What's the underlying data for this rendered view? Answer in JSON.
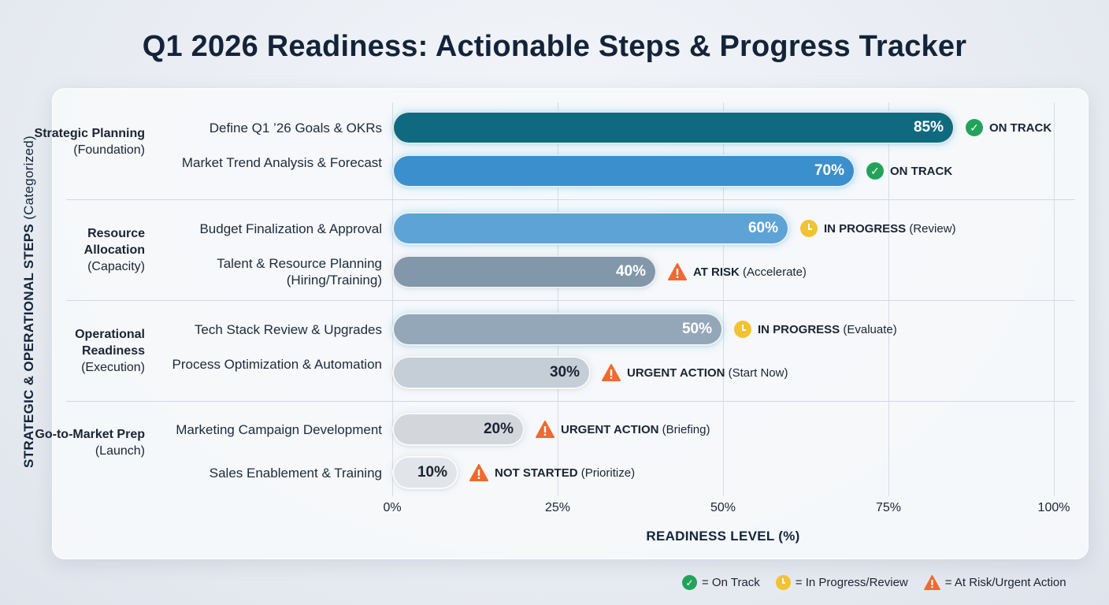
{
  "colors": {
    "on_track": "#22a35a",
    "in_progress": "#f2c233",
    "at_risk": "#ef6a2e"
  },
  "chart_data": {
    "type": "bar",
    "orientation": "horizontal",
    "title": "Q1 2026 Readiness: Actionable Steps & Progress Tracker",
    "xlabel": "READINESS LEVEL (%)",
    "ylabel": "STRATEGIC & OPERATIONAL STEPS",
    "ylabel_sub": "(Categorized)",
    "xlim": [
      0,
      100
    ],
    "xticks": [
      "0%",
      "25%",
      "50%",
      "75%",
      "100%"
    ],
    "groups": [
      {
        "name": "Strategic Planning",
        "sub": "(Foundation)"
      },
      {
        "name": "Resource Allocation",
        "sub": "(Capacity)"
      },
      {
        "name": "Operational Readiness",
        "sub": "(Execution)"
      },
      {
        "name": "Go-to-Market Prep",
        "sub": "(Launch)"
      }
    ],
    "steps": [
      {
        "label": "Define Q1 ’26 Goals & OKRs",
        "value": 85,
        "value_label": "85%",
        "status": "ON TRACK",
        "note": "",
        "icon": "check",
        "bar_color": "#0f6a80",
        "text_color": "#ffffff"
      },
      {
        "label": "Market Trend Analysis & Forecast",
        "value": 70,
        "value_label": "70%",
        "status": "ON TRACK",
        "note": "",
        "icon": "check",
        "bar_color": "#3b8fcc",
        "text_color": "#ffffff"
      },
      {
        "label": "Budget Finalization & Approval",
        "value": 60,
        "value_label": "60%",
        "status": "IN PROGRESS",
        "note": " (Review)",
        "icon": "clock",
        "bar_color": "#5ea3d6",
        "text_color": "#ffffff"
      },
      {
        "label": "Talent & Resource Planning (Hiring/Training)",
        "value": 40,
        "value_label": "40%",
        "status": "AT RISK",
        "note": " (Accelerate)",
        "icon": "warn",
        "bar_color": "#8297aa",
        "text_color": "#ffffff"
      },
      {
        "label": "Tech Stack Review & Upgrades",
        "value": 50,
        "value_label": "50%",
        "status": "IN PROGRESS",
        "note": " (Evaluate)",
        "icon": "clock",
        "bar_color": "#94a7b8",
        "text_color": "#ffffff"
      },
      {
        "label": "Process Optimization & Automation",
        "value": 30,
        "value_label": "30%",
        "status": "URGENT ACTION",
        "note": " (Start Now)",
        "icon": "warn",
        "bar_color": "#c5cdd6",
        "text_color": "#1a2433"
      },
      {
        "label": "Marketing Campaign Development",
        "value": 20,
        "value_label": "20%",
        "status": "URGENT ACTION",
        "note": " (Briefing)",
        "icon": "warn",
        "bar_color": "#d3d7dc",
        "text_color": "#1a2433"
      },
      {
        "label": "Sales Enablement & Training",
        "value": 10,
        "value_label": "10%",
        "status": "NOT STARTED",
        "note": " (Prioritize)",
        "icon": "warn",
        "bar_color": "#e1e4e8",
        "text_color": "#1a2433"
      }
    ],
    "legend": [
      {
        "icon": "check",
        "label": "= On Track"
      },
      {
        "icon": "clock",
        "label": "= In Progress/Review"
      },
      {
        "icon": "warn",
        "label": "= At Risk/Urgent Action"
      }
    ]
  }
}
